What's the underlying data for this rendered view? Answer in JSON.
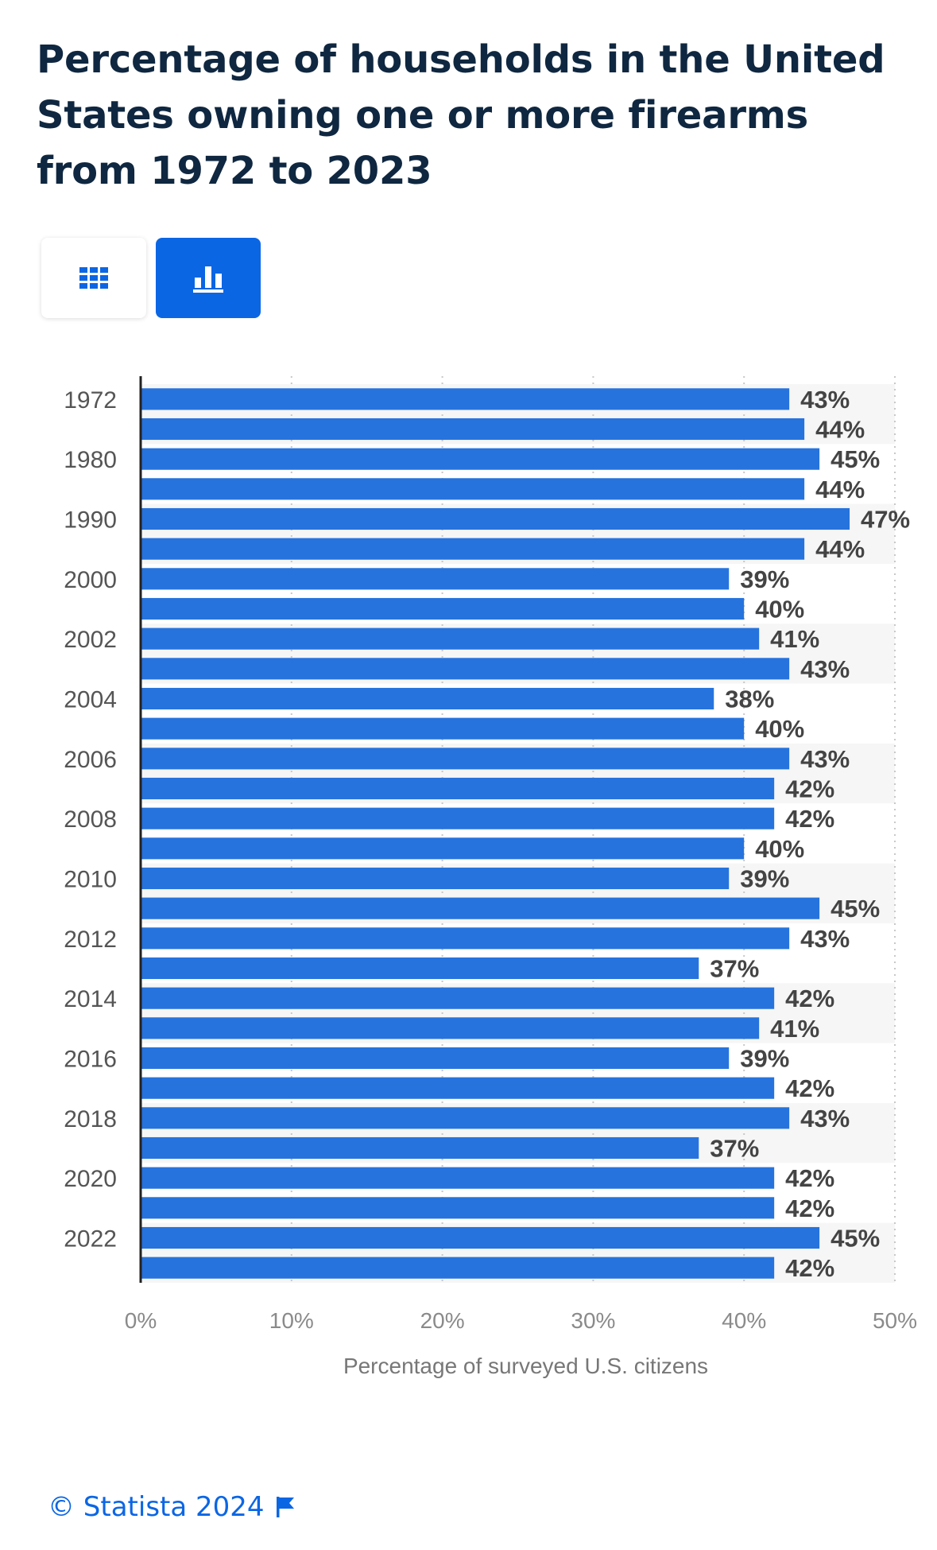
{
  "title": "Percentage of households in the United States owning one or more firearms from 1972 to 2023",
  "view_toggle": {
    "table_icon": "grid-icon",
    "chart_icon": "bar-chart-icon",
    "selected": "chart"
  },
  "colors": {
    "bar": "#2673dd",
    "accent": "#0b66e4",
    "title": "#0f2740",
    "band": "#f6f6f6",
    "label": "#444444"
  },
  "chart_data": {
    "type": "bar",
    "orientation": "horizontal",
    "categories": [
      "1972",
      "",
      "1980",
      "",
      "1990",
      "",
      "2000",
      "",
      "2002",
      "",
      "2004",
      "",
      "2006",
      "",
      "2008",
      "",
      "2010",
      "",
      "2012",
      "",
      "2014",
      "",
      "2016",
      "",
      "2018",
      "",
      "2020",
      "",
      "2022",
      ""
    ],
    "values": [
      43,
      44,
      45,
      44,
      47,
      44,
      39,
      40,
      41,
      43,
      38,
      40,
      43,
      42,
      42,
      40,
      39,
      45,
      43,
      37,
      42,
      41,
      39,
      42,
      43,
      37,
      42,
      42,
      45,
      42
    ],
    "value_labels": [
      "43%",
      "44%",
      "45%",
      "44%",
      "47%",
      "44%",
      "39%",
      "40%",
      "41%",
      "43%",
      "38%",
      "40%",
      "43%",
      "42%",
      "42%",
      "40%",
      "39%",
      "45%",
      "43%",
      "37%",
      "42%",
      "41%",
      "39%",
      "42%",
      "43%",
      "37%",
      "42%",
      "42%",
      "45%",
      "42%"
    ],
    "xlim": [
      0,
      50
    ],
    "ticks": [
      0,
      10,
      20,
      30,
      40,
      50
    ],
    "tick_labels": [
      "0%",
      "10%",
      "20%",
      "30%",
      "40%",
      "50%"
    ],
    "xlabel": "Percentage of surveyed U.S. citizens",
    "grid": true
  },
  "footer": {
    "copyright": "© Statista 2024",
    "flag_icon": "flag-icon"
  }
}
